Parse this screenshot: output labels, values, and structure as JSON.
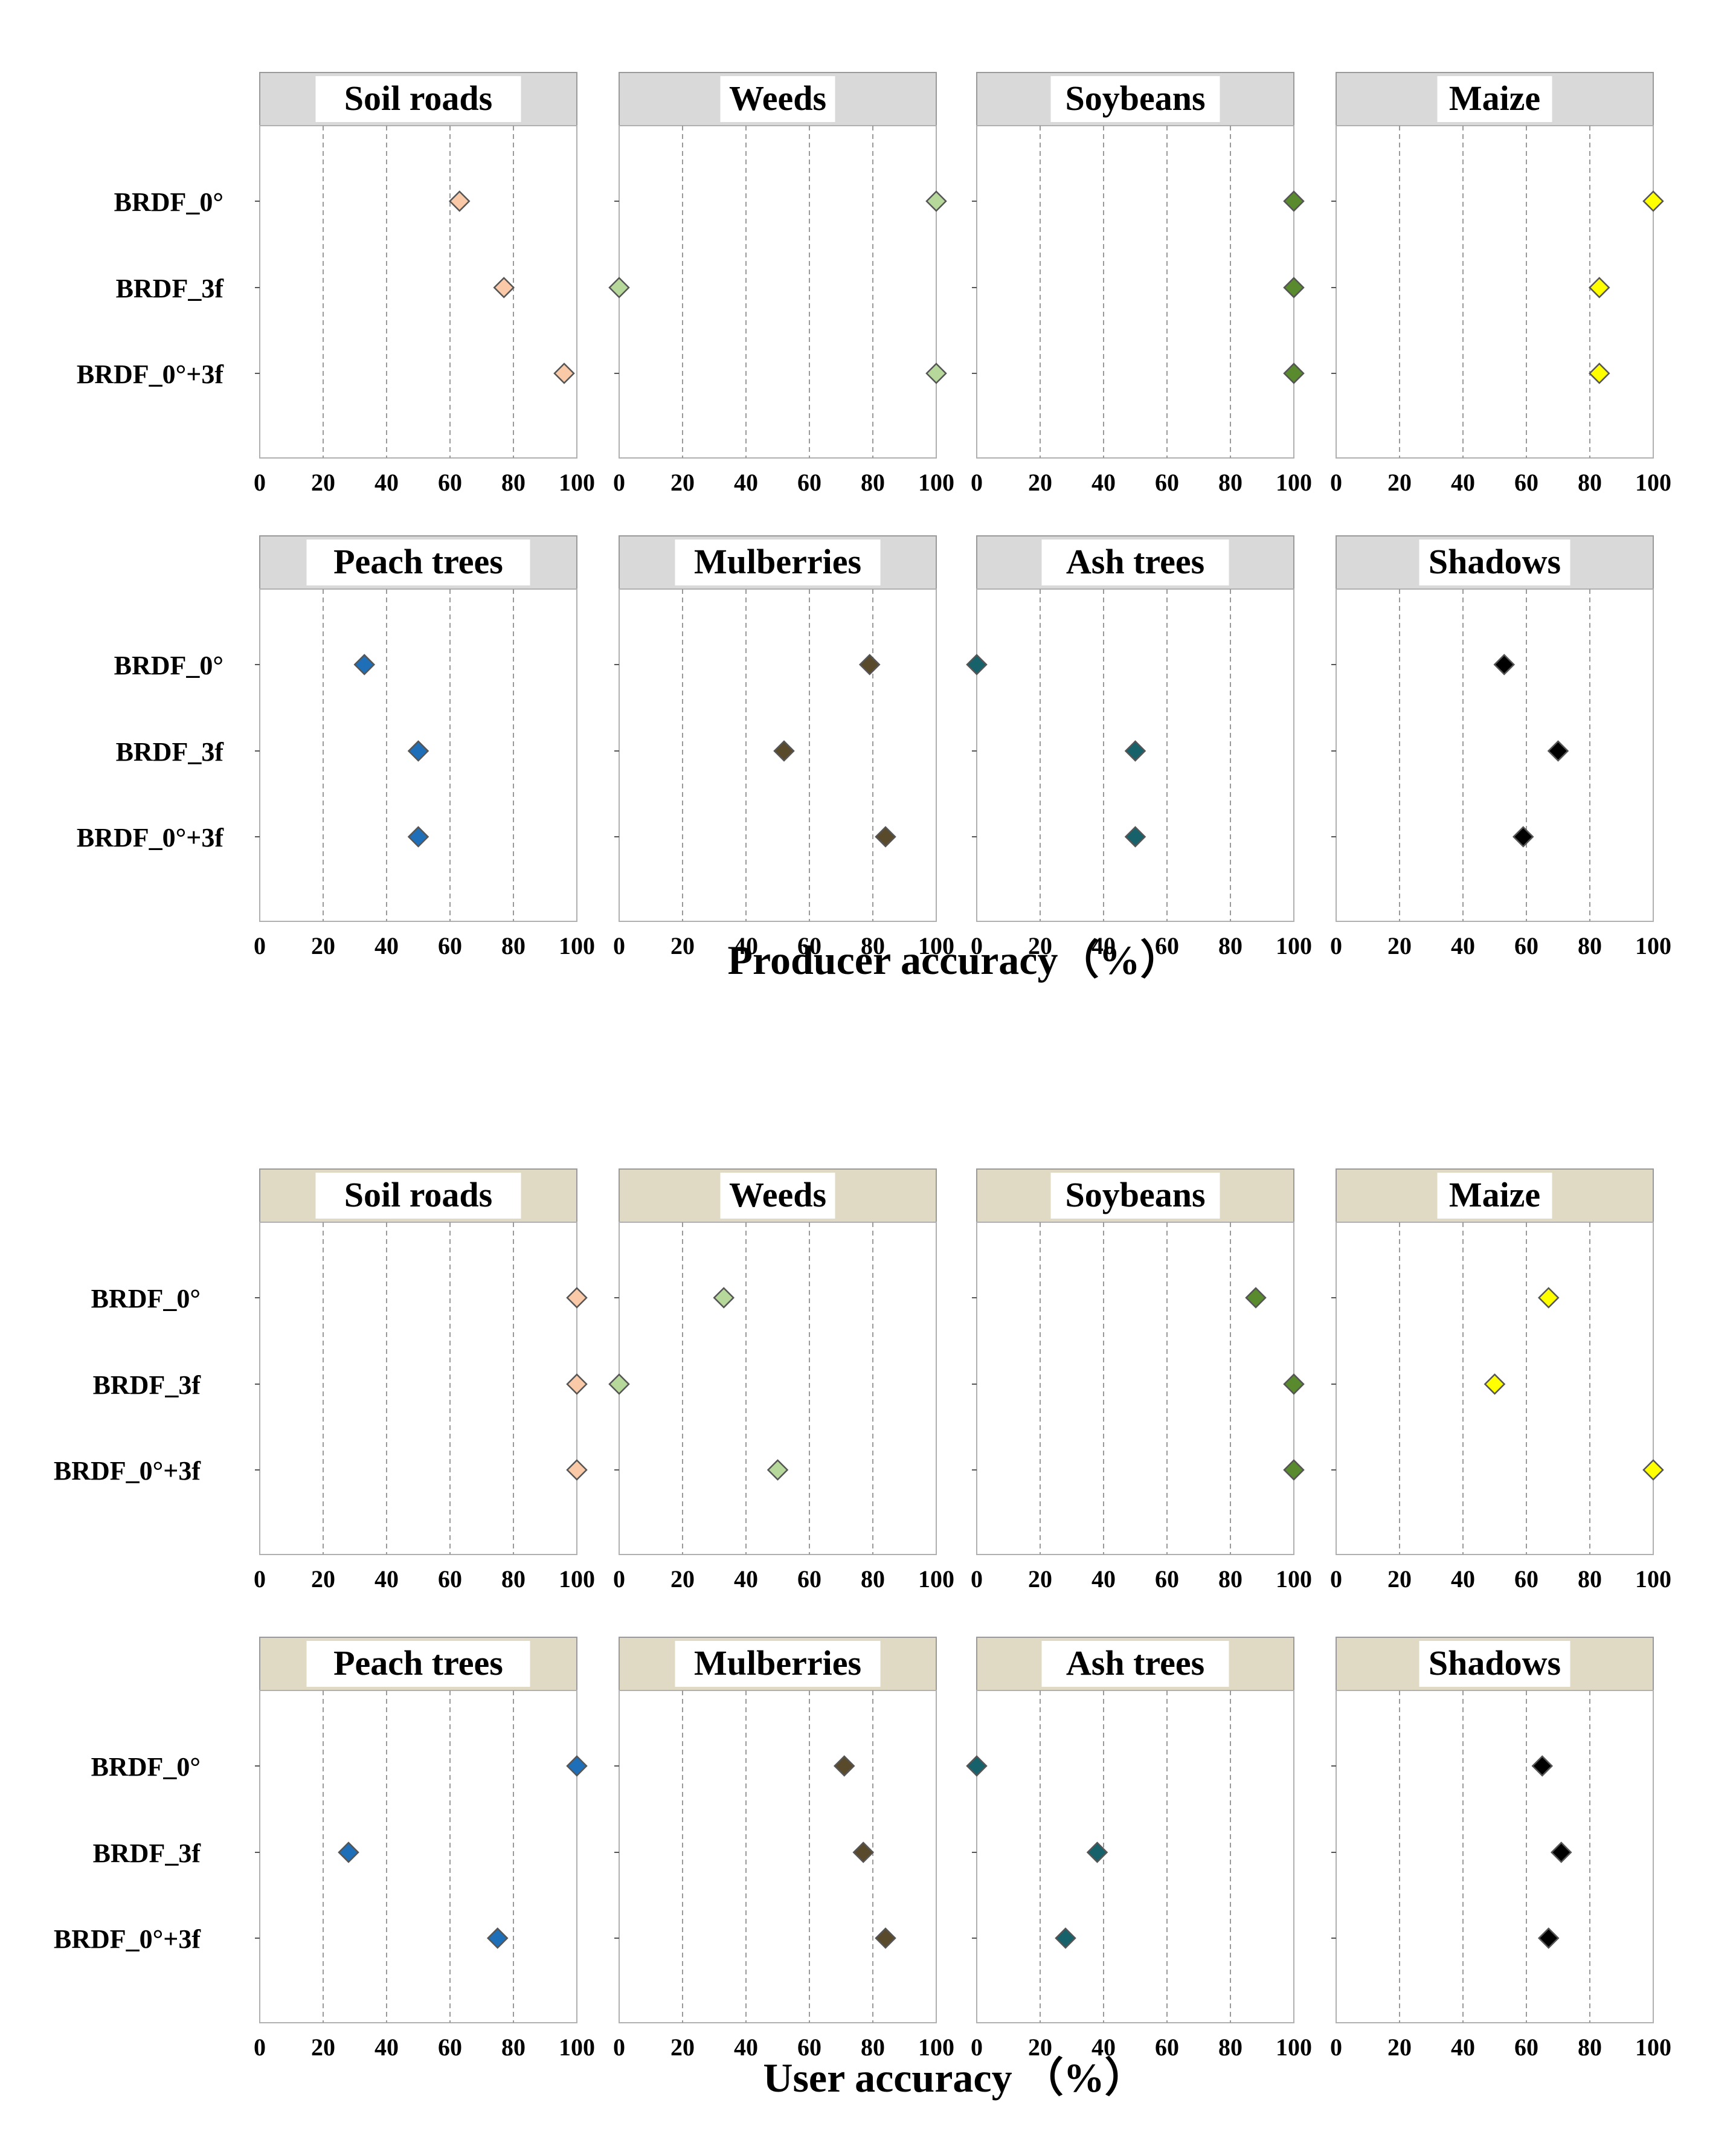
{
  "rows": [
    "BRDF_0°",
    "BRDF_3f",
    "BRDF_0°+3f"
  ],
  "ticks": [
    0,
    20,
    40,
    60,
    80,
    100
  ],
  "chart_data": [
    {
      "type": "dot",
      "title": "Producer accuracy（%）",
      "xlabel": "Producer accuracy（%）",
      "xlim": [
        0,
        100
      ],
      "header_color": "#d9d9d9",
      "panels": [
        {
          "name": "Soil roads",
          "color": "#f9c9a8",
          "values": [
            63,
            77,
            96
          ]
        },
        {
          "name": "Weeds",
          "color": "#b7d89b",
          "values": [
            100,
            0,
            100
          ]
        },
        {
          "name": "Soybeans",
          "color": "#5a8a2e",
          "values": [
            100,
            100,
            100
          ]
        },
        {
          "name": "Maize",
          "color": "#ffff00",
          "values": [
            100,
            83,
            83
          ]
        },
        {
          "name": "Peach trees",
          "color": "#1f6fb8",
          "values": [
            33,
            50,
            50
          ]
        },
        {
          "name": "Mulberries",
          "color": "#5a4a2c",
          "values": [
            79,
            52,
            84
          ]
        },
        {
          "name": "Ash trees",
          "color": "#17616b",
          "values": [
            0,
            50,
            50
          ]
        },
        {
          "name": "Shadows",
          "color": "#000000",
          "values": [
            53,
            70,
            59
          ]
        }
      ]
    },
    {
      "type": "dot",
      "title": "User accuracy （%）",
      "xlabel": "User accuracy （%）",
      "xlim": [
        0,
        100
      ],
      "header_color": "#e0d9c3",
      "panels": [
        {
          "name": "Soil roads",
          "color": "#f9c9a8",
          "values": [
            100,
            100,
            100
          ]
        },
        {
          "name": "Weeds",
          "color": "#b7d89b",
          "values": [
            33,
            0,
            50
          ]
        },
        {
          "name": "Soybeans",
          "color": "#5a8a2e",
          "values": [
            88,
            100,
            100
          ]
        },
        {
          "name": "Maize",
          "color": "#ffff00",
          "values": [
            67,
            50,
            100
          ]
        },
        {
          "name": "Peach trees",
          "color": "#1f6fb8",
          "values": [
            100,
            28,
            75
          ]
        },
        {
          "name": "Mulberries",
          "color": "#5a4a2c",
          "values": [
            71,
            77,
            84
          ]
        },
        {
          "name": "Ash trees",
          "color": "#17616b",
          "values": [
            0,
            38,
            28
          ]
        },
        {
          "name": "Shadows",
          "color": "#000000",
          "values": [
            65,
            71,
            67
          ]
        }
      ]
    }
  ]
}
